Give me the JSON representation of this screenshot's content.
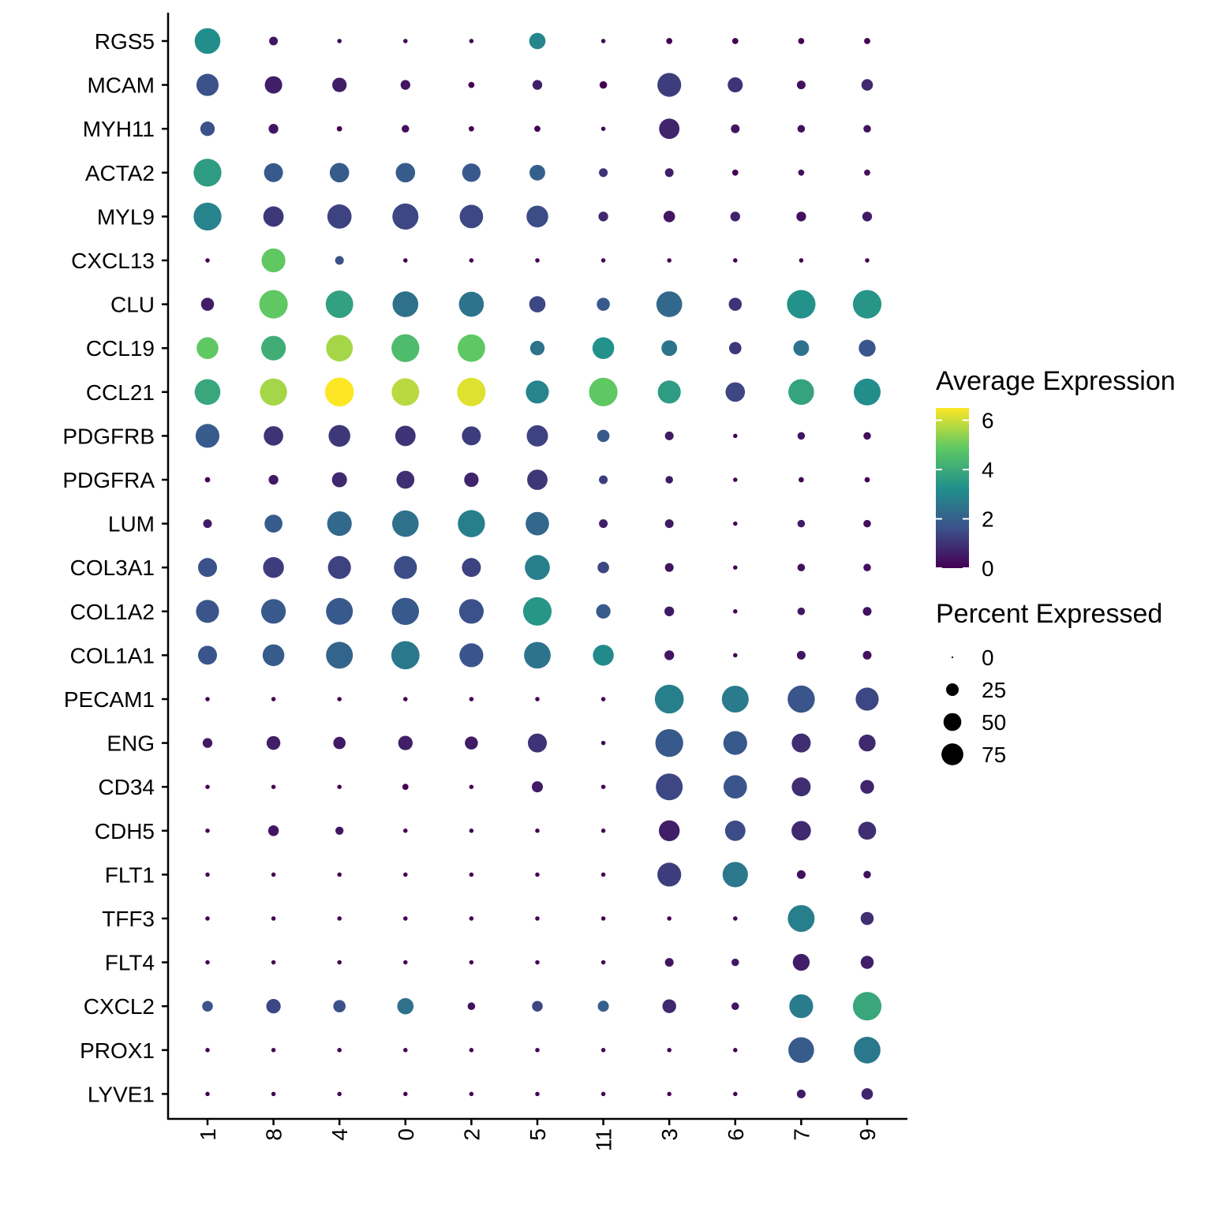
{
  "chart_data": {
    "type": "dot",
    "genes": [
      "RGS5",
      "MCAM",
      "MYH11",
      "ACTA2",
      "MYL9",
      "CXCL13",
      "CLU",
      "CCL19",
      "CCL21",
      "PDGFRB",
      "PDGFRA",
      "LUM",
      "COL3A1",
      "COL1A2",
      "COL1A1",
      "PECAM1",
      "ENG",
      "CD34",
      "CDH5",
      "FLT1",
      "TFF3",
      "FLT4",
      "CXCL2",
      "PROX1",
      "LYVE1"
    ],
    "clusters": [
      "1",
      "8",
      "4",
      "0",
      "2",
      "5",
      "11",
      "3",
      "6",
      "7",
      "9"
    ],
    "avg_expression": [
      [
        3.2,
        0.4,
        0,
        0,
        0,
        3.0,
        0,
        0,
        0,
        0,
        0
      ],
      [
        1.6,
        0.6,
        0.6,
        0.4,
        0,
        0.6,
        0,
        1.2,
        1.0,
        0.3,
        0.8
      ],
      [
        1.6,
        0.4,
        0,
        0.3,
        0,
        0,
        0,
        0.7,
        0.4,
        0.3,
        0.3
      ],
      [
        3.6,
        1.8,
        1.9,
        1.9,
        1.8,
        2.0,
        1.0,
        0.6,
        0,
        0.3,
        0.3
      ],
      [
        2.9,
        1.1,
        1.3,
        1.4,
        1.4,
        1.5,
        0.8,
        0.4,
        0.7,
        0.3,
        0.5
      ],
      [
        0,
        4.9,
        1.6,
        0,
        0,
        0,
        0,
        0,
        0,
        0,
        0
      ],
      [
        0.6,
        4.9,
        3.7,
        2.4,
        2.5,
        1.4,
        1.8,
        2.2,
        1.0,
        3.3,
        3.4
      ],
      [
        4.9,
        4.1,
        5.6,
        4.5,
        4.9,
        2.5,
        3.3,
        2.5,
        1.1,
        2.5,
        1.7
      ],
      [
        3.9,
        5.6,
        6.5,
        5.8,
        6.2,
        2.9,
        4.9,
        3.6,
        1.4,
        3.8,
        3.2
      ],
      [
        1.9,
        1.0,
        1.1,
        1.0,
        1.2,
        1.3,
        1.8,
        0.5,
        0,
        0.4,
        0.3
      ],
      [
        0,
        0.5,
        0.8,
        0.9,
        0.7,
        1.1,
        1.2,
        0.5,
        0,
        0,
        0
      ],
      [
        0.5,
        1.9,
        2.2,
        2.4,
        2.8,
        2.2,
        0.6,
        0.5,
        0,
        0.5,
        0.3
      ],
      [
        1.6,
        1.2,
        1.3,
        1.5,
        1.3,
        2.8,
        1.4,
        0.4,
        0,
        0.3,
        0.3
      ],
      [
        1.7,
        1.8,
        1.8,
        1.8,
        1.6,
        3.4,
        1.9,
        0.5,
        0,
        0.4,
        0.3
      ],
      [
        1.7,
        1.9,
        2.1,
        2.6,
        1.7,
        2.5,
        3.1,
        0.4,
        0,
        0.4,
        0.3
      ],
      [
        0,
        0,
        0,
        0,
        0,
        0,
        0,
        2.8,
        2.7,
        1.7,
        1.4
      ],
      [
        0.5,
        0.6,
        0.5,
        0.6,
        0.5,
        1.0,
        0,
        1.8,
        1.8,
        0.9,
        0.8
      ],
      [
        0,
        0,
        0,
        0,
        0,
        0.5,
        0,
        1.4,
        1.7,
        0.9,
        0.7
      ],
      [
        0,
        0.4,
        0.4,
        0,
        0,
        0,
        0,
        0.6,
        1.5,
        0.8,
        0.9
      ],
      [
        0,
        0,
        0,
        0,
        0,
        0,
        0,
        1.2,
        2.6,
        0.3,
        0.3
      ],
      [
        0,
        0,
        0,
        0,
        0,
        0,
        0,
        0,
        0,
        2.8,
        0.9
      ],
      [
        0,
        0,
        0,
        0,
        0,
        0,
        0,
        0.4,
        0.5,
        0.6,
        0.6
      ],
      [
        1.7,
        1.4,
        1.6,
        2.4,
        0.3,
        1.4,
        2.0,
        0.8,
        0.4,
        2.7,
        3.9
      ],
      [
        0,
        0,
        0,
        0,
        0,
        0,
        0,
        0,
        0,
        1.9,
        2.6
      ],
      [
        0,
        0,
        0,
        0,
        0,
        0,
        0,
        0,
        0,
        0.5,
        0.7
      ]
    ],
    "pct_expressed": [
      [
        70,
        8,
        2,
        2,
        2,
        28,
        2,
        4,
        4,
        4,
        4
      ],
      [
        52,
        32,
        22,
        10,
        4,
        10,
        6,
        60,
        24,
        8,
        14
      ],
      [
        22,
        10,
        3,
        6,
        3,
        4,
        2,
        44,
        8,
        6,
        6
      ],
      [
        82,
        38,
        40,
        40,
        36,
        26,
        8,
        8,
        4,
        4,
        4
      ],
      [
        82,
        44,
        62,
        72,
        58,
        50,
        10,
        14,
        10,
        10,
        10
      ],
      [
        2,
        60,
        8,
        2,
        2,
        2,
        2,
        2,
        2,
        2,
        2
      ],
      [
        18,
        86,
        80,
        70,
        66,
        28,
        18,
        70,
        18,
        86,
        86
      ],
      [
        50,
        64,
        75,
        82,
        80,
        22,
        50,
        26,
        16,
        26,
        30
      ],
      [
        70,
        78,
        88,
        80,
        86,
        56,
        86,
        56,
        40,
        70,
        76
      ],
      [
        60,
        40,
        50,
        44,
        38,
        48,
        16,
        8,
        2,
        6,
        6
      ],
      [
        3,
        10,
        24,
        34,
        22,
        44,
        8,
        6,
        2,
        3,
        3
      ],
      [
        8,
        34,
        64,
        74,
        78,
        58,
        8,
        8,
        2,
        6,
        6
      ],
      [
        38,
        46,
        56,
        56,
        38,
        66,
        14,
        8,
        2,
        6,
        6
      ],
      [
        56,
        64,
        76,
        78,
        64,
        86,
        22,
        10,
        2,
        6,
        8
      ],
      [
        38,
        50,
        76,
        84,
        60,
        75,
        46,
        10,
        2,
        8,
        8
      ],
      [
        2,
        2,
        2,
        2,
        2,
        2,
        2,
        88,
        76,
        78,
        56
      ],
      [
        10,
        20,
        16,
        22,
        18,
        38,
        2,
        82,
        60,
        38,
        30
      ],
      [
        2,
        2,
        2,
        4,
        2,
        13,
        2,
        76,
        58,
        38,
        20
      ],
      [
        2,
        12,
        7,
        2,
        2,
        2,
        2,
        46,
        44,
        40,
        34
      ],
      [
        2,
        2,
        2,
        2,
        2,
        2,
        2,
        60,
        68,
        8,
        6
      ],
      [
        2,
        2,
        2,
        2,
        2,
        2,
        2,
        2,
        2,
        76,
        18
      ],
      [
        2,
        2,
        2,
        2,
        2,
        2,
        2,
        8,
        6,
        30,
        18
      ],
      [
        12,
        22,
        16,
        28,
        6,
        12,
        13,
        20,
        6,
        60,
        86
      ],
      [
        2,
        2,
        2,
        2,
        2,
        2,
        2,
        2,
        2,
        70,
        75
      ],
      [
        2,
        2,
        2,
        2,
        2,
        2,
        2,
        2,
        2,
        8,
        14
      ]
    ],
    "color_scale": {
      "name": "viridis",
      "range": [
        0,
        6.5
      ],
      "stops": [
        "#440154",
        "#3b528b",
        "#21908c",
        "#5dc863",
        "#fde725"
      ]
    },
    "legend": {
      "color_title": "Average Expression",
      "color_ticks": [
        0,
        2,
        4,
        6
      ],
      "size_title": "Percent Expressed",
      "size_ticks": [
        0,
        25,
        50,
        75
      ]
    },
    "legend_position": "right",
    "grid": false
  }
}
